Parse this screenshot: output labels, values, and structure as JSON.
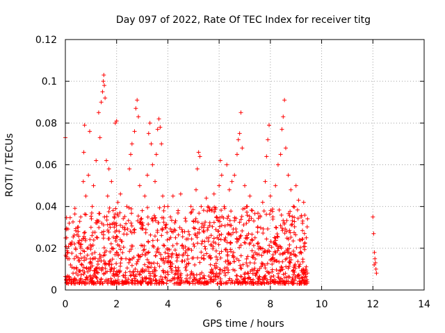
{
  "chart_data": {
    "type": "scatter",
    "title": "Day 097 of 2022, Rate Of TEC Index for receiver titg",
    "xlabel": "GPS time / hours",
    "ylabel": "ROTI / TECUs",
    "xlim": [
      0,
      14
    ],
    "ylim": [
      0,
      0.12
    ],
    "xticks": [
      0,
      2,
      4,
      6,
      8,
      10,
      12,
      14
    ],
    "yticks": [
      0,
      0.02,
      0.04,
      0.06,
      0.08,
      0.1,
      0.12
    ],
    "xtick_labels": [
      "0",
      "2",
      "4",
      "6",
      "8",
      "10",
      "12",
      "14"
    ],
    "ytick_labels": [
      "0",
      "0.02",
      "0.04",
      "0.06",
      "0.08",
      "0.1",
      "0.12"
    ],
    "grid": true,
    "marker": "plus",
    "color": "#ff0000",
    "series": [
      {
        "points": [
          [
            0.0,
            0.073
          ],
          [
            0.05,
            0.025
          ],
          [
            0.1,
            0.018
          ],
          [
            0.15,
            0.032
          ],
          [
            0.2,
            0.012
          ],
          [
            0.25,
            0.022
          ],
          [
            0.3,
            0.008
          ],
          [
            0.35,
            0.015
          ],
          [
            0.4,
            0.02
          ],
          [
            0.45,
            0.01
          ],
          [
            0.5,
            0.028
          ],
          [
            0.55,
            0.014
          ],
          [
            0.6,
            0.035
          ],
          [
            0.65,
            0.012
          ],
          [
            0.7,
            0.052
          ],
          [
            0.72,
            0.066
          ],
          [
            0.75,
            0.079
          ],
          [
            0.8,
            0.045
          ],
          [
            0.85,
            0.02
          ],
          [
            0.9,
            0.055
          ],
          [
            0.95,
            0.076
          ],
          [
            1.0,
            0.03
          ],
          [
            1.05,
            0.04
          ],
          [
            1.1,
            0.05
          ],
          [
            1.15,
            0.018
          ],
          [
            1.2,
            0.062
          ],
          [
            1.25,
            0.025
          ],
          [
            1.3,
            0.085
          ],
          [
            1.35,
            0.073
          ],
          [
            1.4,
            0.09
          ],
          [
            1.45,
            0.095
          ],
          [
            1.48,
            0.1
          ],
          [
            1.5,
            0.103
          ],
          [
            1.52,
            0.098
          ],
          [
            1.55,
            0.092
          ],
          [
            1.6,
            0.062
          ],
          [
            1.65,
            0.045
          ],
          [
            1.7,
            0.058
          ],
          [
            1.75,
            0.03
          ],
          [
            1.8,
            0.052
          ],
          [
            1.85,
            0.02
          ],
          [
            1.9,
            0.035
          ],
          [
            1.95,
            0.08
          ],
          [
            2.0,
            0.081
          ],
          [
            2.05,
            0.042
          ],
          [
            2.1,
            0.028
          ],
          [
            2.15,
            0.046
          ],
          [
            2.2,
            0.015
          ],
          [
            2.3,
            0.03
          ],
          [
            2.4,
            0.04
          ],
          [
            2.5,
            0.058
          ],
          [
            2.55,
            0.065
          ],
          [
            2.6,
            0.07
          ],
          [
            2.7,
            0.076
          ],
          [
            2.75,
            0.087
          ],
          [
            2.8,
            0.091
          ],
          [
            2.85,
            0.083
          ],
          [
            2.9,
            0.05
          ],
          [
            3.0,
            0.038
          ],
          [
            3.1,
            0.045
          ],
          [
            3.2,
            0.055
          ],
          [
            3.25,
            0.075
          ],
          [
            3.3,
            0.08
          ],
          [
            3.35,
            0.07
          ],
          [
            3.4,
            0.06
          ],
          [
            3.5,
            0.052
          ],
          [
            3.55,
            0.065
          ],
          [
            3.6,
            0.077
          ],
          [
            3.65,
            0.082
          ],
          [
            3.7,
            0.078
          ],
          [
            3.75,
            0.07
          ],
          [
            3.8,
            0.045
          ],
          [
            3.9,
            0.03
          ],
          [
            4.0,
            0.04
          ],
          [
            4.1,
            0.035
          ],
          [
            4.2,
            0.045
          ],
          [
            4.3,
            0.025
          ],
          [
            4.4,
            0.038
          ],
          [
            4.5,
            0.046
          ],
          [
            4.6,
            0.02
          ],
          [
            4.7,
            0.033
          ],
          [
            4.8,
            0.028
          ],
          [
            4.9,
            0.04
          ],
          [
            5.0,
            0.022
          ],
          [
            5.1,
            0.048
          ],
          [
            5.15,
            0.058
          ],
          [
            5.2,
            0.066
          ],
          [
            5.25,
            0.064
          ],
          [
            5.3,
            0.04
          ],
          [
            5.4,
            0.03
          ],
          [
            5.5,
            0.044
          ],
          [
            5.6,
            0.025
          ],
          [
            5.7,
            0.038
          ],
          [
            5.8,
            0.046
          ],
          [
            5.9,
            0.035
          ],
          [
            6.0,
            0.05
          ],
          [
            6.05,
            0.062
          ],
          [
            6.1,
            0.055
          ],
          [
            6.2,
            0.04
          ],
          [
            6.3,
            0.06
          ],
          [
            6.4,
            0.048
          ],
          [
            6.5,
            0.052
          ],
          [
            6.6,
            0.055
          ],
          [
            6.7,
            0.065
          ],
          [
            6.75,
            0.072
          ],
          [
            6.8,
            0.075
          ],
          [
            6.85,
            0.085
          ],
          [
            6.9,
            0.068
          ],
          [
            7.0,
            0.05
          ],
          [
            7.1,
            0.04
          ],
          [
            7.2,
            0.045
          ],
          [
            7.3,
            0.038
          ],
          [
            7.4,
            0.025
          ],
          [
            7.5,
            0.03
          ],
          [
            7.6,
            0.035
          ],
          [
            7.7,
            0.042
          ],
          [
            7.8,
            0.052
          ],
          [
            7.85,
            0.064
          ],
          [
            7.9,
            0.072
          ],
          [
            7.95,
            0.079
          ],
          [
            8.0,
            0.045
          ],
          [
            8.1,
            0.035
          ],
          [
            8.2,
            0.05
          ],
          [
            8.3,
            0.06
          ],
          [
            8.4,
            0.065
          ],
          [
            8.45,
            0.077
          ],
          [
            8.5,
            0.083
          ],
          [
            8.55,
            0.091
          ],
          [
            8.6,
            0.068
          ],
          [
            8.7,
            0.055
          ],
          [
            8.8,
            0.048
          ],
          [
            8.9,
            0.04
          ],
          [
            9.0,
            0.05
          ],
          [
            9.1,
            0.043
          ],
          [
            9.2,
            0.035
          ],
          [
            9.3,
            0.042
          ],
          [
            9.4,
            0.025
          ],
          [
            12.0,
            0.035
          ],
          [
            12.03,
            0.027
          ],
          [
            12.06,
            0.018
          ],
          [
            12.08,
            0.015
          ],
          [
            12.1,
            0.013
          ],
          [
            12.12,
            0.01
          ],
          [
            12.14,
            0.008
          ],
          [
            12.05,
            0.012
          ]
        ],
        "dense_band": {
          "x_range": [
            0,
            9.45
          ],
          "y_typical": [
            0.003,
            0.04
          ],
          "y_median": 0.014
        }
      }
    ]
  }
}
